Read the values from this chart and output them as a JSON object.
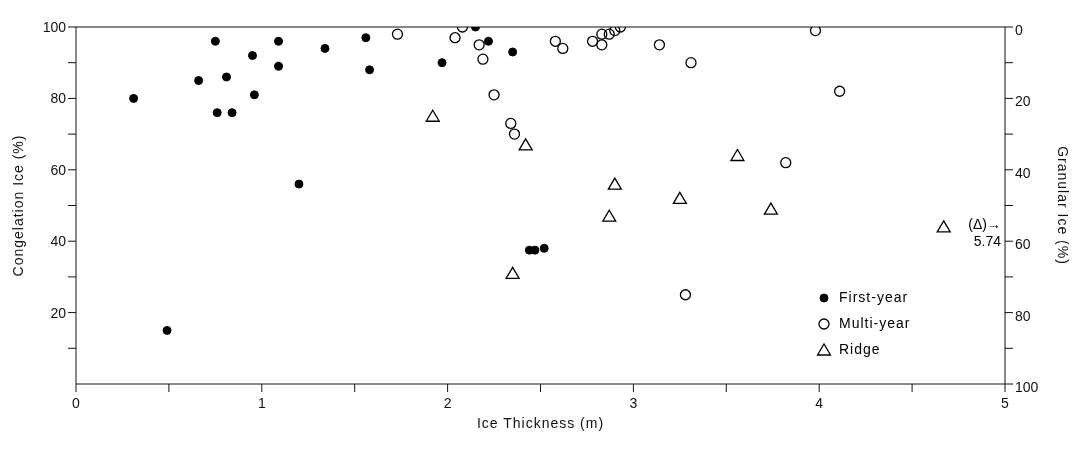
{
  "chart_data": {
    "type": "scatter",
    "xlabel": "Ice Thickness (m)",
    "ylabel": "Congelation Ice (%)",
    "y2label": "Granular Ice (%)",
    "xlim": [
      0,
      5
    ],
    "xticks": [
      0,
      {
        "value": 0.5,
        "label": null
      },
      1,
      {
        "value": 1.5,
        "label": null
      },
      2,
      {
        "value": 2.5,
        "label": null
      },
      3,
      {
        "value": 3.5,
        "label": null
      },
      4,
      {
        "value": 4.5,
        "label": null
      },
      5
    ],
    "ylim": [
      0,
      100
    ],
    "yticks": [
      {
        "value": 10,
        "label": null
      },
      20,
      {
        "value": 30,
        "label": null
      },
      40,
      {
        "value": 50,
        "label": null
      },
      60,
      {
        "value": 70,
        "label": null
      },
      80,
      {
        "value": 90,
        "label": null
      },
      100
    ],
    "y2lim": [
      100,
      0
    ],
    "y2ticks": [
      0,
      {
        "value": 10,
        "label": null
      },
      20,
      {
        "value": 30,
        "label": null
      },
      40,
      {
        "value": 50,
        "label": null
      },
      60,
      {
        "value": 70,
        "label": null
      },
      80,
      {
        "value": 90,
        "label": null
      },
      100
    ],
    "legend": "bottom right",
    "annotations": [
      "(Δ)→\n5.74"
    ],
    "series": [
      {
        "name": "First-year",
        "color": "#000000",
        "marker": "circle",
        "x": [
          0.31,
          0.49,
          0.66,
          0.75,
          0.76,
          0.81,
          0.84,
          0.95,
          0.96,
          1.09,
          1.09,
          1.2,
          1.34,
          1.56,
          1.58,
          1.97,
          2.15,
          2.22,
          2.35,
          2.44,
          2.47,
          2.52
        ],
        "values": [
          80,
          15,
          85,
          96,
          76,
          86,
          76,
          92,
          81,
          96,
          89,
          56,
          94,
          97,
          88,
          90,
          100,
          96,
          93,
          37.5,
          37.5,
          38
        ]
      },
      {
        "name": "Multi-year",
        "color": "#000000",
        "marker": "circle-open",
        "x": [
          1.73,
          2.04,
          2.08,
          2.17,
          2.19,
          2.25,
          2.34,
          2.36,
          2.58,
          2.62,
          2.78,
          2.83,
          2.83,
          2.87,
          2.9,
          2.93,
          3.14,
          3.28,
          3.31,
          3.82,
          3.98,
          4.11
        ],
        "values": [
          98,
          97,
          100,
          95,
          91,
          81,
          73,
          70,
          96,
          94,
          96,
          98,
          95,
          98,
          99,
          100,
          95,
          25,
          90,
          62,
          99,
          82
        ]
      },
      {
        "name": "Ridge",
        "color": "#000000",
        "marker": "triangle-open",
        "x": [
          1.92,
          2.35,
          2.42,
          2.87,
          2.9,
          3.25,
          3.56,
          3.74,
          4.67
        ],
        "values": [
          75,
          31,
          67,
          47,
          56,
          52,
          64,
          49,
          44
        ]
      }
    ]
  }
}
